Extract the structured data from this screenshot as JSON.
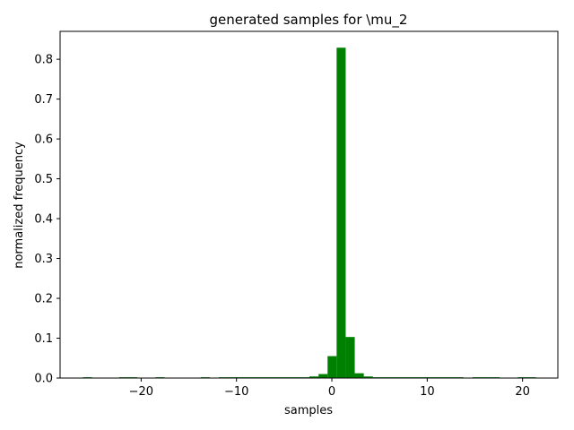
{
  "chart_data": {
    "type": "bar",
    "title": "generated samples for \\mu_2",
    "xlabel": "samples",
    "ylabel": "normalized frequency",
    "xlim": [
      -28.5,
      23.7
    ],
    "ylim": [
      0,
      0.87
    ],
    "xticks": [
      -20,
      -10,
      0,
      10,
      20
    ],
    "xtick_labels": [
      "−20",
      "−10",
      "0",
      "10",
      "20"
    ],
    "yticks": [
      0.0,
      0.1,
      0.2,
      0.3,
      0.4,
      0.5,
      0.6,
      0.7,
      0.8
    ],
    "ytick_labels": [
      "0.0",
      "0.1",
      "0.2",
      "0.3",
      "0.4",
      "0.5",
      "0.6",
      "0.7",
      "0.8"
    ],
    "grid": false,
    "bar_color": "#008000",
    "bins": [
      {
        "x0": -26.1,
        "x1": -25.15,
        "value": 0.002
      },
      {
        "x0": -22.3,
        "x1": -20.4,
        "value": 0.002
      },
      {
        "x0": -18.5,
        "x1": -17.55,
        "value": 0.002
      },
      {
        "x0": -13.75,
        "x1": -12.8,
        "value": 0.002
      },
      {
        "x0": -11.85,
        "x1": -2.35,
        "value": 0.002
      },
      {
        "x0": -2.35,
        "x1": -1.4,
        "value": 0.004
      },
      {
        "x0": -1.4,
        "x1": -0.45,
        "value": 0.01
      },
      {
        "x0": -0.45,
        "x1": 0.5,
        "value": 0.055
      },
      {
        "x0": 0.5,
        "x1": 1.45,
        "value": 0.829
      },
      {
        "x0": 1.45,
        "x1": 2.4,
        "value": 0.103
      },
      {
        "x0": 2.4,
        "x1": 3.35,
        "value": 0.012
      },
      {
        "x0": 3.35,
        "x1": 4.3,
        "value": 0.004
      },
      {
        "x0": 4.3,
        "x1": 13.8,
        "value": 0.002
      },
      {
        "x0": 14.75,
        "x1": 17.6,
        "value": 0.002
      },
      {
        "x0": 19.5,
        "x1": 21.4,
        "value": 0.002
      }
    ]
  }
}
